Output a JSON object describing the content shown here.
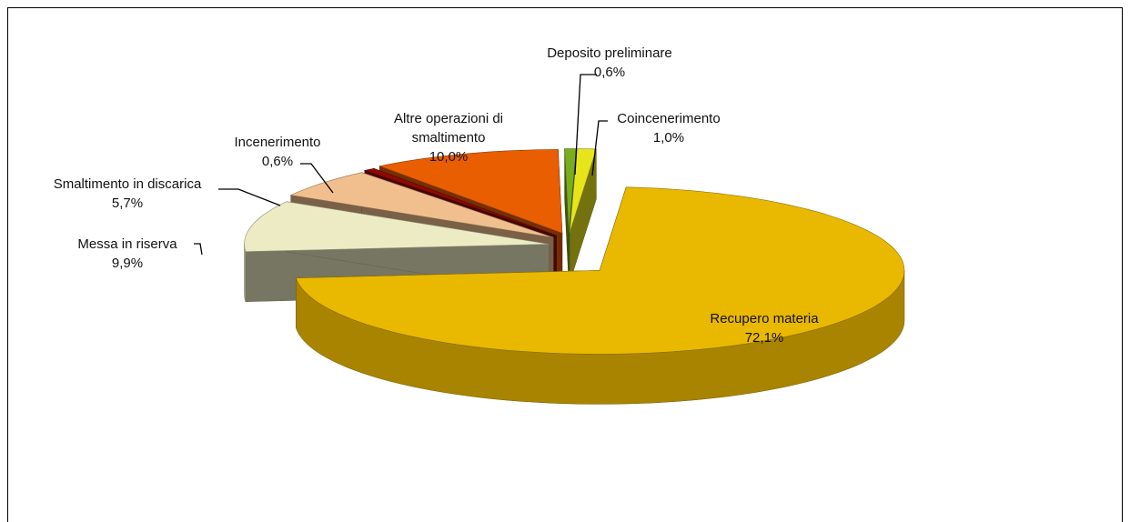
{
  "chart_data": {
    "type": "pie3d",
    "categories": [
      "Recupero materia",
      "Messa in riserva",
      "Smaltimento in discarica",
      "Incenerimento",
      "Altre operazioni di smaltimento",
      "Deposito preliminare",
      "Coincenerimento"
    ],
    "values": [
      72.1,
      9.9,
      5.7,
      0.6,
      10.0,
      0.6,
      1.0
    ],
    "value_labels": [
      "72,1%",
      "9,9%",
      "5,7%",
      "0,6%",
      "10,0%",
      "0,6%",
      "1,0%"
    ],
    "colors": [
      "#e9b800",
      "#ecebc4",
      "#f1bf8e",
      "#8e0a00",
      "#e85e00",
      "#79ad1e",
      "#e8e41c"
    ]
  }
}
